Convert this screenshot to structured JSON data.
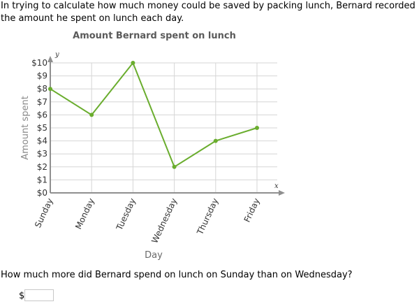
{
  "problem": {
    "intro": "In trying to calculate how much money could be saved by packing lunch, Bernard recorded the amount he spent on lunch each day.",
    "question": "How much more did Bernard spend on lunch on Sunday than on Wednesday?",
    "currency_symbol": "$",
    "answer_value": ""
  },
  "chart_data": {
    "type": "line",
    "title": "Amount Bernard spent on lunch",
    "xlabel": "Day",
    "ylabel": "Amount spent",
    "x_axis_symbol": "x",
    "y_axis_symbol": "y",
    "categories": [
      "Sunday",
      "Monday",
      "Tuesday",
      "Wednesday",
      "Thursday",
      "Friday"
    ],
    "values": [
      8,
      6,
      10,
      2,
      4,
      5
    ],
    "yticks": [
      "$0",
      "$1",
      "$2",
      "$3",
      "$4",
      "$5",
      "$6",
      "$7",
      "$8",
      "$9",
      "$10"
    ],
    "ylim": [
      0,
      10
    ],
    "grid": true,
    "line_color": "#6aad2e",
    "grid_color": "#d6d6d6",
    "axis_color": "#8f8f8f"
  }
}
